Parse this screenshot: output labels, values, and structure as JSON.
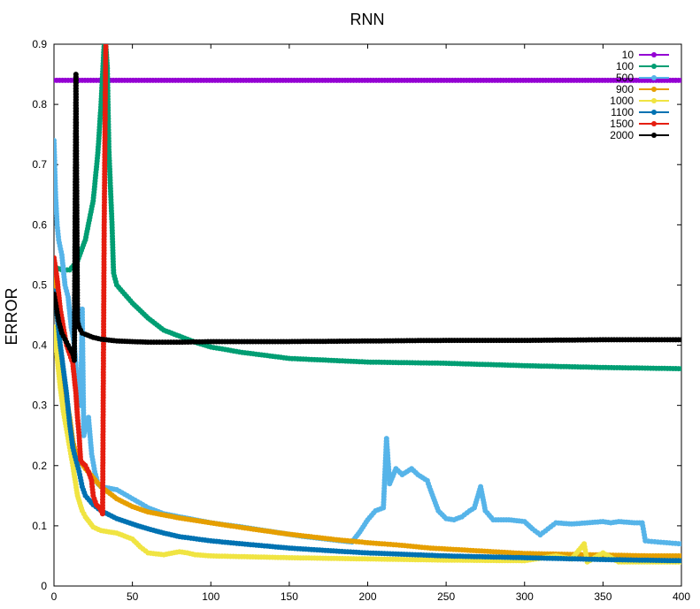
{
  "chart_data": {
    "type": "line",
    "title": "RNN",
    "xlabel": "",
    "ylabel": "ERROR",
    "xlim": [
      0,
      400
    ],
    "ylim": [
      0,
      0.9
    ],
    "x_ticks": [
      "0",
      "50",
      "100",
      "150",
      "200",
      "250",
      "300",
      "350",
      "400"
    ],
    "y_ticks": [
      "0",
      "0.1",
      "0.2",
      "0.3",
      "0.4",
      "0.5",
      "0.6",
      "0.7",
      "0.8",
      "0.9"
    ],
    "grid": false,
    "legend_position": "top-right",
    "series": [
      {
        "name": "10",
        "color": "#9400d3",
        "points": [
          [
            0,
            0.84
          ],
          [
            400,
            0.84
          ]
        ]
      },
      {
        "name": "100",
        "color": "#009e73",
        "points": [
          [
            0,
            0.53
          ],
          [
            5,
            0.525
          ],
          [
            10,
            0.525
          ],
          [
            15,
            0.54
          ],
          [
            20,
            0.575
          ],
          [
            25,
            0.64
          ],
          [
            28,
            0.72
          ],
          [
            30,
            0.8
          ],
          [
            31,
            0.85
          ],
          [
            32,
            0.9
          ],
          [
            33,
            0.9
          ],
          [
            34,
            0.86
          ],
          [
            35,
            0.725
          ],
          [
            37,
            0.6
          ],
          [
            38,
            0.52
          ],
          [
            40,
            0.5
          ],
          [
            50,
            0.47
          ],
          [
            60,
            0.445
          ],
          [
            70,
            0.425
          ],
          [
            80,
            0.415
          ],
          [
            90,
            0.405
          ],
          [
            100,
            0.397
          ],
          [
            120,
            0.388
          ],
          [
            150,
            0.378
          ],
          [
            200,
            0.372
          ],
          [
            250,
            0.37
          ],
          [
            300,
            0.366
          ],
          [
            350,
            0.363
          ],
          [
            400,
            0.361
          ]
        ]
      },
      {
        "name": "500",
        "color": "#56b4e9",
        "points": [
          [
            0,
            0.74
          ],
          [
            1,
            0.65
          ],
          [
            2,
            0.6
          ],
          [
            3,
            0.575
          ],
          [
            5,
            0.55
          ],
          [
            7,
            0.5
          ],
          [
            9,
            0.48
          ],
          [
            11,
            0.43
          ],
          [
            13,
            0.4
          ],
          [
            15,
            0.33
          ],
          [
            17,
            0.3
          ],
          [
            18,
            0.46
          ],
          [
            19,
            0.25
          ],
          [
            20,
            0.26
          ],
          [
            22,
            0.28
          ],
          [
            24,
            0.22
          ],
          [
            26,
            0.19
          ],
          [
            28,
            0.17
          ],
          [
            30,
            0.165
          ],
          [
            40,
            0.16
          ],
          [
            50,
            0.145
          ],
          [
            60,
            0.13
          ],
          [
            70,
            0.12
          ],
          [
            80,
            0.115
          ],
          [
            90,
            0.11
          ],
          [
            100,
            0.105
          ],
          [
            120,
            0.098
          ],
          [
            140,
            0.09
          ],
          [
            160,
            0.082
          ],
          [
            180,
            0.076
          ],
          [
            190,
            0.073
          ],
          [
            195,
            0.09
          ],
          [
            200,
            0.11
          ],
          [
            205,
            0.125
          ],
          [
            210,
            0.13
          ],
          [
            212,
            0.245
          ],
          [
            214,
            0.17
          ],
          [
            218,
            0.195
          ],
          [
            222,
            0.185
          ],
          [
            228,
            0.195
          ],
          [
            232,
            0.185
          ],
          [
            238,
            0.175
          ],
          [
            240,
            0.16
          ],
          [
            245,
            0.125
          ],
          [
            250,
            0.112
          ],
          [
            255,
            0.11
          ],
          [
            260,
            0.115
          ],
          [
            265,
            0.125
          ],
          [
            268,
            0.13
          ],
          [
            272,
            0.165
          ],
          [
            275,
            0.125
          ],
          [
            280,
            0.11
          ],
          [
            290,
            0.11
          ],
          [
            300,
            0.107
          ],
          [
            305,
            0.095
          ],
          [
            310,
            0.085
          ],
          [
            315,
            0.095
          ],
          [
            320,
            0.105
          ],
          [
            330,
            0.103
          ],
          [
            340,
            0.105
          ],
          [
            350,
            0.107
          ],
          [
            355,
            0.105
          ],
          [
            360,
            0.107
          ],
          [
            370,
            0.105
          ],
          [
            375,
            0.105
          ],
          [
            377,
            0.075
          ],
          [
            385,
            0.073
          ],
          [
            400,
            0.07
          ]
        ]
      },
      {
        "name": "900",
        "color": "#e69f00",
        "points": [
          [
            0,
            0.53
          ],
          [
            2,
            0.45
          ],
          [
            4,
            0.39
          ],
          [
            6,
            0.34
          ],
          [
            8,
            0.31
          ],
          [
            10,
            0.28
          ],
          [
            12,
            0.24
          ],
          [
            14,
            0.22
          ],
          [
            16,
            0.21
          ],
          [
            20,
            0.195
          ],
          [
            25,
            0.18
          ],
          [
            30,
            0.165
          ],
          [
            40,
            0.145
          ],
          [
            50,
            0.132
          ],
          [
            60,
            0.123
          ],
          [
            70,
            0.118
          ],
          [
            80,
            0.113
          ],
          [
            100,
            0.105
          ],
          [
            120,
            0.097
          ],
          [
            150,
            0.086
          ],
          [
            180,
            0.077
          ],
          [
            200,
            0.072
          ],
          [
            220,
            0.068
          ],
          [
            240,
            0.063
          ],
          [
            260,
            0.06
          ],
          [
            280,
            0.057
          ],
          [
            300,
            0.054
          ],
          [
            320,
            0.053
          ],
          [
            340,
            0.052
          ],
          [
            360,
            0.051
          ],
          [
            380,
            0.05
          ],
          [
            400,
            0.05
          ]
        ]
      },
      {
        "name": "1000",
        "color": "#f0e442",
        "points": [
          [
            0,
            0.43
          ],
          [
            2,
            0.38
          ],
          [
            4,
            0.33
          ],
          [
            6,
            0.29
          ],
          [
            8,
            0.26
          ],
          [
            10,
            0.23
          ],
          [
            12,
            0.2
          ],
          [
            15,
            0.15
          ],
          [
            18,
            0.125
          ],
          [
            20,
            0.115
          ],
          [
            25,
            0.098
          ],
          [
            30,
            0.092
          ],
          [
            40,
            0.088
          ],
          [
            50,
            0.078
          ],
          [
            55,
            0.065
          ],
          [
            60,
            0.055
          ],
          [
            70,
            0.052
          ],
          [
            80,
            0.057
          ],
          [
            85,
            0.055
          ],
          [
            90,
            0.052
          ],
          [
            100,
            0.05
          ],
          [
            150,
            0.047
          ],
          [
            200,
            0.045
          ],
          [
            250,
            0.043
          ],
          [
            300,
            0.042
          ],
          [
            320,
            0.05
          ],
          [
            330,
            0.045
          ],
          [
            338,
            0.07
          ],
          [
            340,
            0.04
          ],
          [
            350,
            0.055
          ],
          [
            360,
            0.04
          ],
          [
            380,
            0.04
          ],
          [
            400,
            0.04
          ]
        ]
      },
      {
        "name": "1100",
        "color": "#0072b2",
        "points": [
          [
            0,
            0.49
          ],
          [
            2,
            0.45
          ],
          [
            4,
            0.4
          ],
          [
            6,
            0.36
          ],
          [
            8,
            0.32
          ],
          [
            10,
            0.27
          ],
          [
            12,
            0.23
          ],
          [
            14,
            0.21
          ],
          [
            16,
            0.19
          ],
          [
            18,
            0.165
          ],
          [
            20,
            0.15
          ],
          [
            25,
            0.135
          ],
          [
            30,
            0.125
          ],
          [
            40,
            0.112
          ],
          [
            50,
            0.103
          ],
          [
            60,
            0.095
          ],
          [
            70,
            0.088
          ],
          [
            80,
            0.082
          ],
          [
            100,
            0.075
          ],
          [
            120,
            0.07
          ],
          [
            150,
            0.063
          ],
          [
            180,
            0.058
          ],
          [
            200,
            0.055
          ],
          [
            250,
            0.05
          ],
          [
            300,
            0.047
          ],
          [
            350,
            0.044
          ],
          [
            400,
            0.042
          ]
        ]
      },
      {
        "name": "1500",
        "color": "#e51e10",
        "points": [
          [
            0,
            0.545
          ],
          [
            2,
            0.51
          ],
          [
            4,
            0.46
          ],
          [
            6,
            0.43
          ],
          [
            8,
            0.4
          ],
          [
            10,
            0.385
          ],
          [
            12,
            0.37
          ],
          [
            14,
            0.32
          ],
          [
            15,
            0.28
          ],
          [
            16,
            0.25
          ],
          [
            17,
            0.21
          ],
          [
            18,
            0.205
          ],
          [
            20,
            0.2
          ],
          [
            22,
            0.19
          ],
          [
            24,
            0.175
          ],
          [
            25,
            0.15
          ],
          [
            27,
            0.135
          ],
          [
            29,
            0.13
          ],
          [
            30,
            0.125
          ],
          [
            31,
            0.12
          ],
          [
            32,
            0.595
          ],
          [
            33,
            0.9
          ]
        ]
      },
      {
        "name": "2000",
        "color": "#000000",
        "points": [
          [
            0,
            0.485
          ],
          [
            1,
            0.47
          ],
          [
            2,
            0.455
          ],
          [
            3,
            0.44
          ],
          [
            4,
            0.43
          ],
          [
            5,
            0.42
          ],
          [
            7,
            0.41
          ],
          [
            9,
            0.4
          ],
          [
            11,
            0.39
          ],
          [
            12,
            0.385
          ],
          [
            13,
            0.375
          ],
          [
            14,
            0.85
          ],
          [
            15,
            0.44
          ],
          [
            16,
            0.43
          ],
          [
            18,
            0.42
          ],
          [
            20,
            0.418
          ],
          [
            25,
            0.413
          ],
          [
            30,
            0.41
          ],
          [
            40,
            0.407
          ],
          [
            50,
            0.406
          ],
          [
            60,
            0.405
          ],
          [
            80,
            0.405
          ],
          [
            100,
            0.406
          ],
          [
            150,
            0.406
          ],
          [
            200,
            0.407
          ],
          [
            250,
            0.408
          ],
          [
            300,
            0.408
          ],
          [
            350,
            0.409
          ],
          [
            400,
            0.409
          ]
        ]
      }
    ]
  }
}
